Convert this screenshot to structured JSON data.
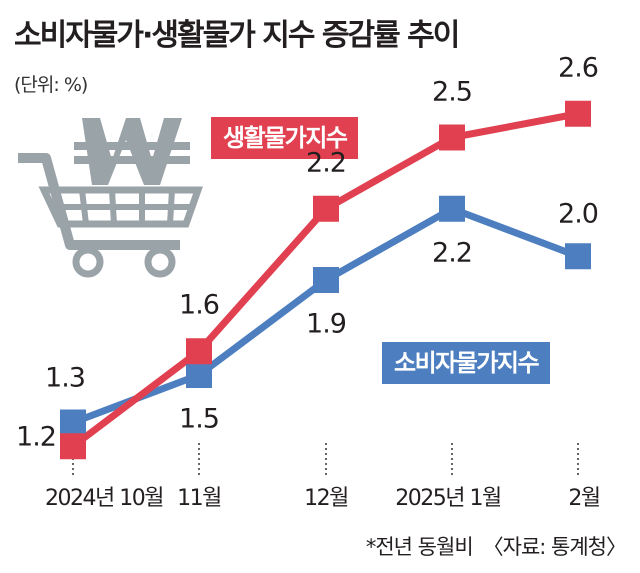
{
  "title": "소비자물가·생활물가 지수 증감률 추이",
  "unit": "(단위: %)",
  "footnote": "*전년 동월비",
  "source": "〈자료: 통계청〉",
  "colors": {
    "living": "#e0404f",
    "consumer": "#4c7ec0",
    "cart": "#9aa3a8"
  },
  "icon": "shopping-cart-won-icon",
  "chart_data": {
    "type": "line",
    "categories": [
      "2024년 10월",
      "11월",
      "12월",
      "2025년 1월",
      "2월"
    ],
    "series": [
      {
        "name": "생활물가지수",
        "values": [
          1.2,
          1.6,
          2.2,
          2.5,
          2.6
        ],
        "labels": [
          "1.2",
          "1.6",
          "2.2",
          "2.5",
          "2.6"
        ]
      },
      {
        "name": "소비자물가지수",
        "values": [
          1.3,
          1.5,
          1.9,
          2.2,
          2.0
        ],
        "labels": [
          "1.3",
          "1.5",
          "1.9",
          "2.2",
          "2.0"
        ]
      }
    ],
    "ylim": [
      1.1,
      2.7
    ],
    "grid": false
  }
}
